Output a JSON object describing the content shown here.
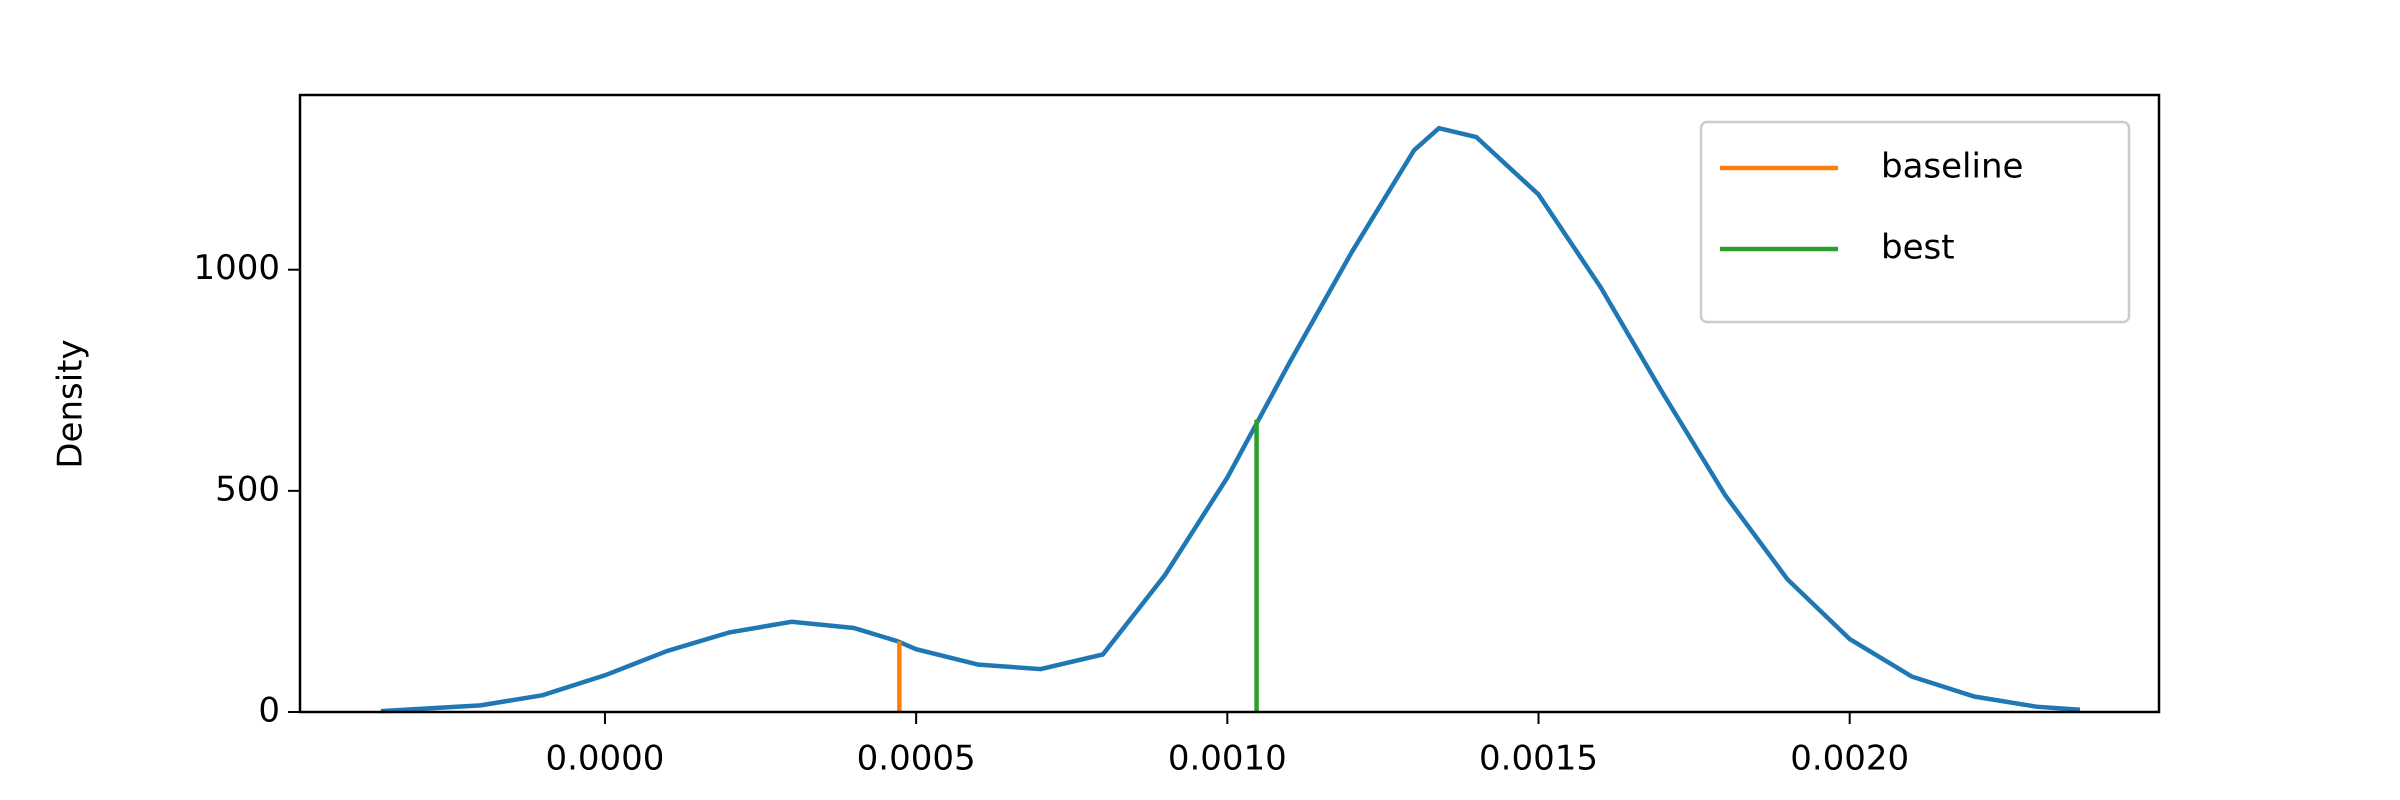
{
  "chart_data": {
    "type": "line",
    "ylabel": "Density",
    "xlim": [
      -0.00049,
      0.002497
    ],
    "ylim": [
      0,
      1395
    ],
    "xticks": [
      {
        "value": 0,
        "label": "0.0000"
      },
      {
        "value": 0.0005,
        "label": "0.0005"
      },
      {
        "value": 0.001,
        "label": "0.0010"
      },
      {
        "value": 0.0015,
        "label": "0.0015"
      },
      {
        "value": 0.002,
        "label": "0.0020"
      }
    ],
    "yticks": [
      0,
      500,
      1000
    ],
    "legend": "upper right",
    "series": [
      {
        "color": "#1f77b4",
        "x": [
          -0.00036,
          -0.0002,
          -0.0001,
          0,
          0.0001,
          0.0002,
          0.0003,
          0.0004,
          0.00047,
          0.0005,
          0.0006,
          0.0007,
          0.0008,
          0.0009,
          0.001,
          0.00105,
          0.0011,
          0.0012,
          0.0013,
          0.00134,
          0.0014,
          0.0015,
          0.0016,
          0.0017,
          0.0018,
          0.0019,
          0.002,
          0.0021,
          0.0022,
          0.0023,
          0.00237
        ],
        "values": [
          2,
          15,
          38,
          83,
          138,
          180,
          204,
          190,
          160,
          142,
          107,
          97,
          130,
          310,
          530,
          660,
          790,
          1040,
          1270,
          1320,
          1300,
          1170,
          960,
          720,
          490,
          300,
          165,
          80,
          35,
          12,
          5
        ]
      },
      {
        "name": "baseline",
        "color": "#ff7f0e",
        "x": [
          0.000473,
          0.000473
        ],
        "values": [
          0,
          160
        ]
      },
      {
        "name": "best",
        "color": "#2ca02c",
        "x": [
          0.001047,
          0.001047
        ],
        "values": [
          0,
          661
        ]
      }
    ]
  }
}
